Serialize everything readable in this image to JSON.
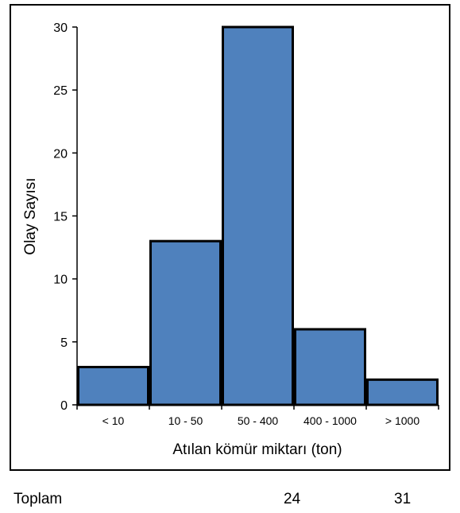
{
  "chart_data": {
    "type": "bar",
    "categories": [
      "< 10",
      "10 - 50",
      "50 - 400",
      "400 - 1000",
      "> 1000"
    ],
    "values": [
      3,
      13,
      30,
      6,
      2
    ],
    "title": "",
    "xlabel": "Atılan kömür miktarı (ton)",
    "ylabel": "Olay Sayısı",
    "ylim": [
      0,
      30
    ],
    "yticks": [
      0,
      5,
      10,
      15,
      20,
      25,
      30
    ],
    "grid": false,
    "bar_color": "#4f81bd"
  },
  "footer": {
    "label": "Toplam",
    "value_1": "24",
    "value_2": "31"
  }
}
